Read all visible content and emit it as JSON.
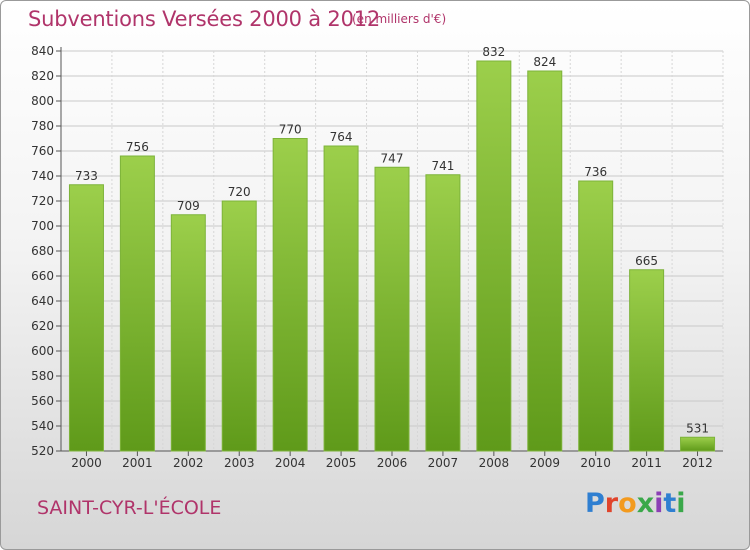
{
  "header": {
    "title": "Subventions Versées 2000 à 2012",
    "unit": "(en milliers d'€)"
  },
  "footer": {
    "city": "SAINT-CYR-L'ÉCOLE",
    "logo_letters": [
      "P",
      "r",
      "o",
      "x",
      "i",
      "t",
      "i"
    ]
  },
  "colors": {
    "title": "#b0346a",
    "bar_light": "#9ccf4b",
    "bar_dark": "#5f9a1a",
    "logo": [
      "#2f7fd1",
      "#e0442b",
      "#f39a1e",
      "#3aa84a",
      "#8b3fb5",
      "#2f7fd1",
      "#3aa84a"
    ]
  },
  "chart_data": {
    "type": "bar",
    "categories": [
      "2000",
      "2001",
      "2002",
      "2003",
      "2004",
      "2005",
      "2006",
      "2007",
      "2008",
      "2009",
      "2010",
      "2011",
      "2012"
    ],
    "values": [
      733,
      756,
      709,
      720,
      770,
      764,
      747,
      741,
      832,
      824,
      736,
      665,
      531
    ],
    "title": "Subventions Versées 2000 à 2012",
    "ylim": [
      520,
      840
    ],
    "yticks": [
      520,
      540,
      560,
      580,
      600,
      620,
      640,
      660,
      680,
      700,
      720,
      740,
      760,
      780,
      800,
      820,
      840
    ],
    "grid": true
  }
}
